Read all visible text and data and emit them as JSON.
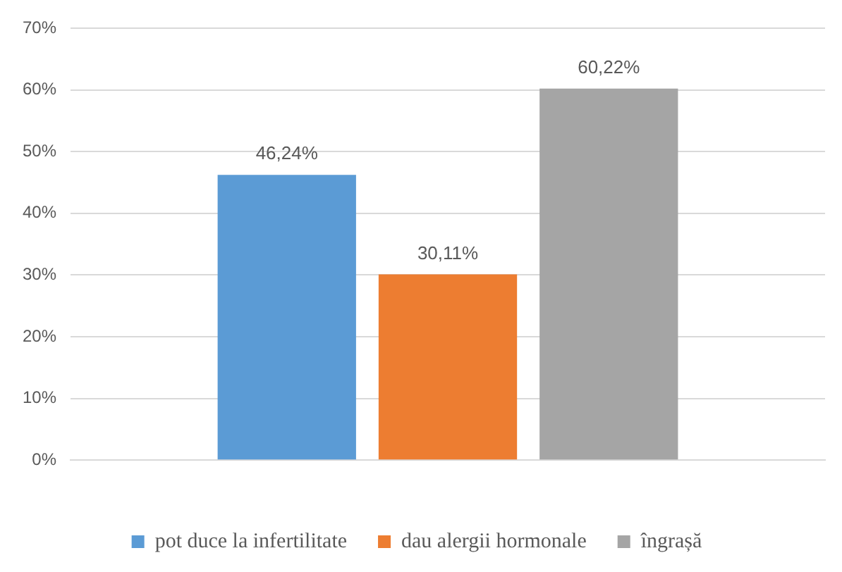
{
  "chart_data": {
    "type": "bar",
    "categories": [
      null
    ],
    "series": [
      {
        "name": "pot duce la infertilitate",
        "color": "#5b9bd5",
        "values": [
          46.24
        ],
        "value_labels": [
          "46,24%"
        ]
      },
      {
        "name": "dau alergii hormonale",
        "color": "#ed7d31",
        "values": [
          30.11
        ],
        "value_labels": [
          "30,11%"
        ]
      },
      {
        "name": "îngrașă",
        "color": "#a5a5a5",
        "values": [
          60.22
        ],
        "value_labels": [
          "60,22%"
        ]
      }
    ],
    "ylim": [
      0,
      70
    ],
    "yticks": [
      {
        "value": 0,
        "label": "0%"
      },
      {
        "value": 10,
        "label": "10%"
      },
      {
        "value": 20,
        "label": "20%"
      },
      {
        "value": 30,
        "label": "30%"
      },
      {
        "value": 40,
        "label": "40%"
      },
      {
        "value": 50,
        "label": "50%"
      },
      {
        "value": 60,
        "label": "60%"
      },
      {
        "value": 70,
        "label": "70%"
      }
    ],
    "grid": "y",
    "legend": "bottom"
  }
}
